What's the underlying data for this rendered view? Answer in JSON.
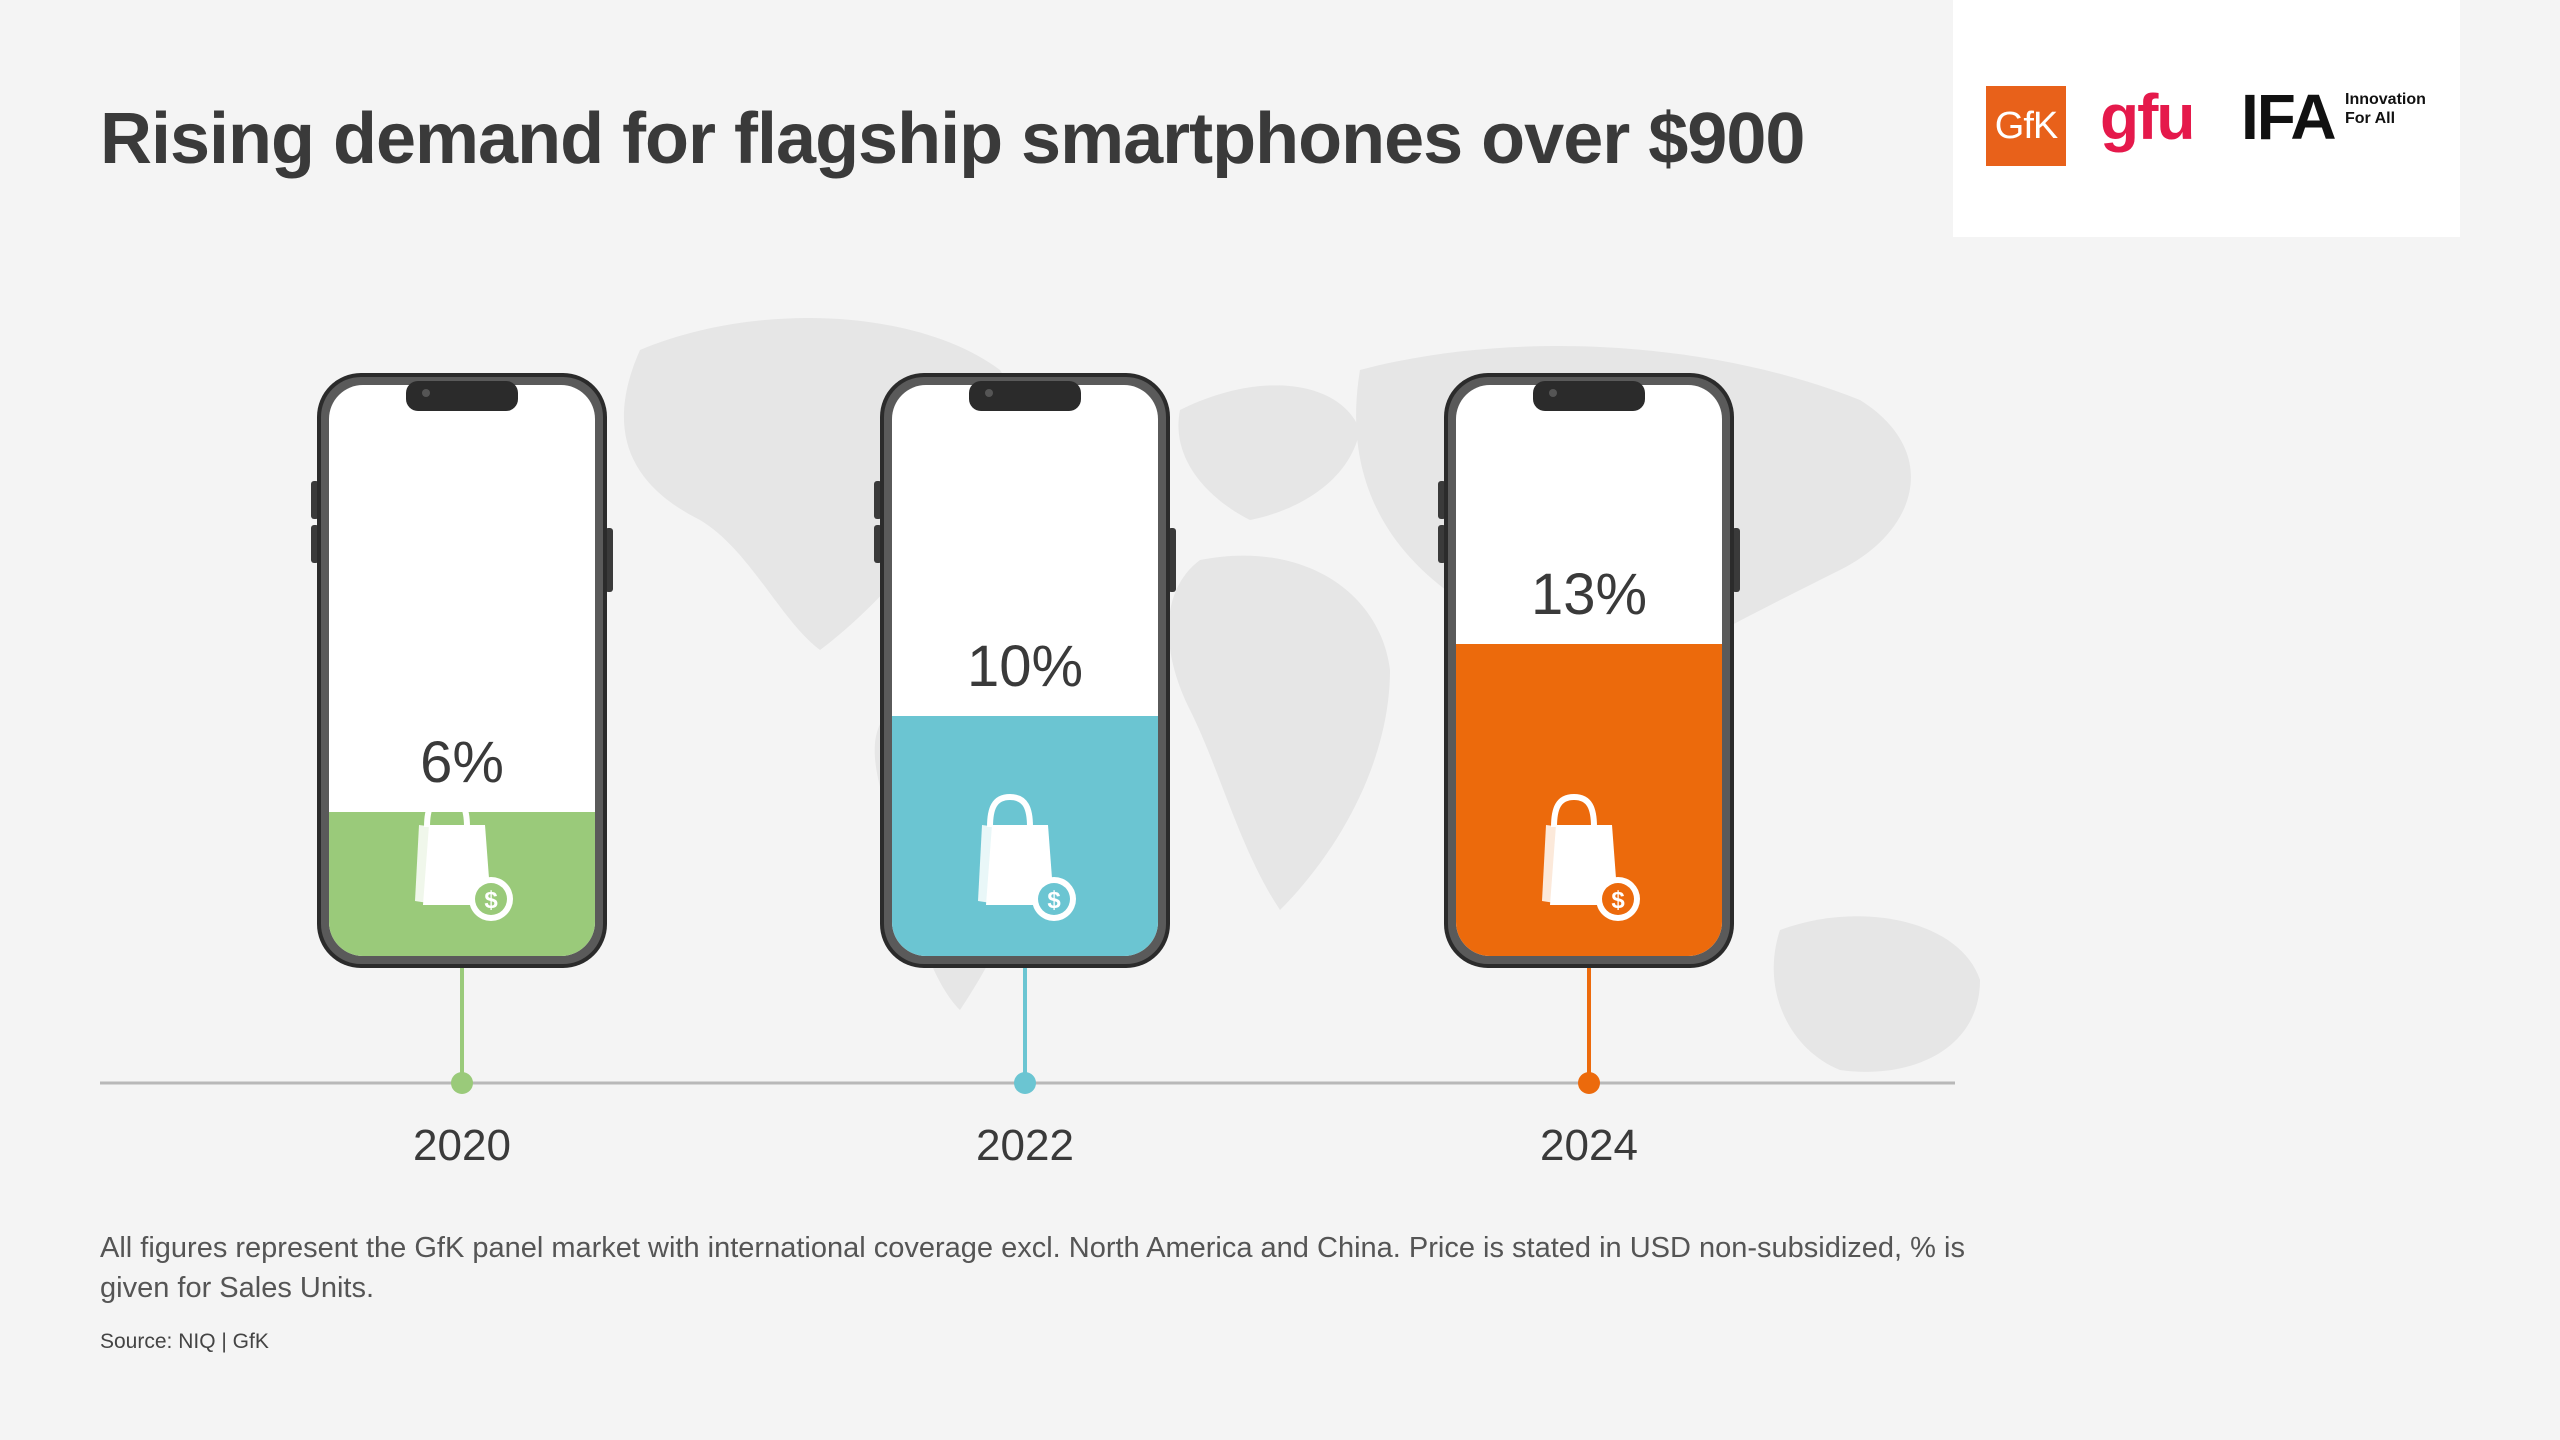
{
  "title": "Rising demand for flagship smartphones over $900",
  "logos": {
    "gfk": "GfK",
    "gfu": "gfu",
    "ifa": "IFA",
    "ifa_tagline_1": "Innovation",
    "ifa_tagline_2": "For All"
  },
  "chart_data": {
    "type": "bar",
    "title": "Rising demand for flagship smartphones over $900",
    "categories": [
      "2020",
      "2022",
      "2024"
    ],
    "values": [
      6,
      10,
      13
    ],
    "labels": [
      "6%",
      "10%",
      "13%"
    ],
    "unit": "%",
    "colors": [
      "#9aca7a",
      "#6bc5d2",
      "#ec6a0c"
    ],
    "bar_icon": "shopping-bag-dollar-icon",
    "bar_shape": "smartphone",
    "ylim": [
      0,
      20
    ],
    "grid": false
  },
  "footnote": "All figures represent the GfK panel market with international coverage excl. North America and China. Price is stated in USD non-subsidized, % is given for Sales Units.",
  "source": "Source: NIQ | GfK"
}
